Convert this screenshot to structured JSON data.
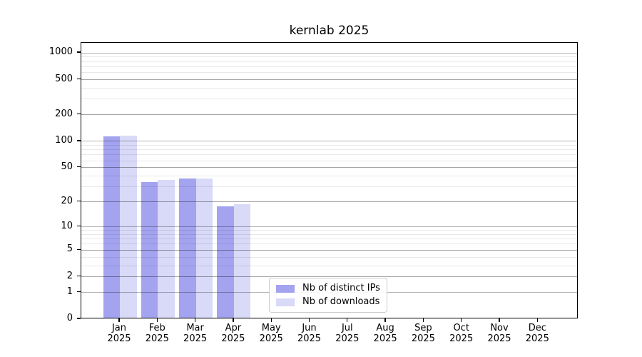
{
  "chart_data": {
    "type": "bar",
    "title": "kernlab 2025",
    "categories": [
      "Jan 2025",
      "Feb 2025",
      "Mar 2025",
      "Apr 2025",
      "May 2025",
      "Jun 2025",
      "Jul 2025",
      "Aug 2025",
      "Sep 2025",
      "Oct 2025",
      "Nov 2025",
      "Dec 2025"
    ],
    "x_months": [
      "Jan",
      "Feb",
      "Mar",
      "Apr",
      "May",
      "Jun",
      "Jul",
      "Aug",
      "Sep",
      "Oct",
      "Nov",
      "Dec"
    ],
    "x_year": "2025",
    "series": [
      {
        "name": "Nb of distinct IPs",
        "color": "#a3a3ef",
        "values": [
          110,
          33,
          36,
          17,
          0,
          0,
          0,
          0,
          0,
          0,
          0,
          0
        ]
      },
      {
        "name": "Nb of downloads",
        "color": "#d9d9f8",
        "values": [
          111,
          35,
          36,
          18,
          0,
          0,
          0,
          0,
          0,
          0,
          0,
          0
        ]
      }
    ],
    "y_ticks": [
      0,
      1,
      2,
      5,
      10,
      20,
      50,
      100,
      200,
      500,
      1000
    ],
    "y_scale": "log10(value+1)",
    "ylim": [
      0,
      1300
    ],
    "grid": true,
    "grid_major_color": "#b5b5b5",
    "grid_minor_color": "#e9e9e9",
    "legend_position": "lower-center-inside"
  }
}
